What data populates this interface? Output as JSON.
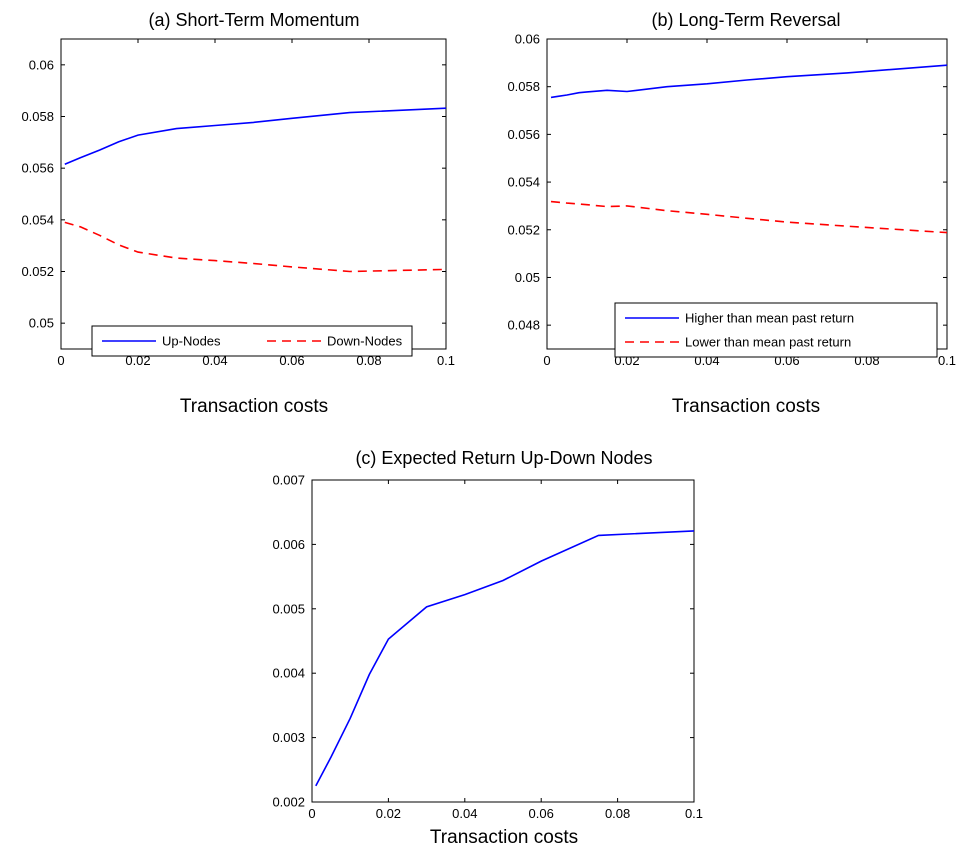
{
  "chart_data": [
    {
      "type": "line",
      "title": "(a) Short-Term Momentum",
      "xlabel": "Transaction costs",
      "ylabel": "",
      "xlim": [
        0,
        0.1
      ],
      "ylim": [
        0.049,
        0.061
      ],
      "xticks": [
        0,
        0.02,
        0.04,
        0.06,
        0.08,
        0.1
      ],
      "xtick_labels": [
        "0",
        "0.02",
        "0.04",
        "0.06",
        "0.08",
        "0.1"
      ],
      "yticks": [
        0.05,
        0.052,
        0.054,
        0.056,
        0.058,
        0.06
      ],
      "ytick_labels": [
        "0.05",
        "0.052",
        "0.054",
        "0.056",
        "0.058",
        "0.06"
      ],
      "legend": "bottom-horizontal",
      "series": [
        {
          "name": "Up-Nodes",
          "color": "#0000ff",
          "dash": "solid",
          "x": [
            0.001,
            0.005,
            0.01,
            0.015,
            0.02,
            0.03,
            0.04,
            0.05,
            0.06,
            0.075,
            0.1
          ],
          "y": [
            0.05615,
            0.0564,
            0.0567,
            0.05702,
            0.05728,
            0.05753,
            0.05765,
            0.05777,
            0.05793,
            0.05815,
            0.05832
          ]
        },
        {
          "name": "Down-Nodes",
          "color": "#ff0000",
          "dash": "dashed",
          "x": [
            0.001,
            0.005,
            0.01,
            0.015,
            0.02,
            0.03,
            0.04,
            0.05,
            0.06,
            0.075,
            0.1
          ],
          "y": [
            0.0539,
            0.05373,
            0.0534,
            0.05303,
            0.05275,
            0.05252,
            0.05242,
            0.05231,
            0.05218,
            0.052,
            0.05208
          ]
        }
      ]
    },
    {
      "type": "line",
      "title": "(b) Long-Term Reversal",
      "xlabel": "Transaction costs",
      "ylabel": "",
      "xlim": [
        0,
        0.1
      ],
      "ylim": [
        0.047,
        0.06
      ],
      "xticks": [
        0,
        0.02,
        0.04,
        0.06,
        0.08,
        0.1
      ],
      "xtick_labels": [
        "0",
        "0.02",
        "0.04",
        "0.06",
        "0.08",
        "0.1"
      ],
      "yticks": [
        0.048,
        0.05,
        0.052,
        0.054,
        0.056,
        0.058,
        0.06
      ],
      "ytick_labels": [
        "0.048",
        "0.05",
        "0.052",
        "0.054",
        "0.056",
        "0.058",
        "0.06"
      ],
      "legend": "bottom-right",
      "series": [
        {
          "name": "Higher than mean past return",
          "color": "#0000ff",
          "dash": "solid",
          "x": [
            0.001,
            0.003,
            0.005,
            0.008,
            0.01,
            0.015,
            0.02,
            0.03,
            0.04,
            0.05,
            0.06,
            0.075,
            0.1
          ],
          "y": [
            0.05755,
            0.0576,
            0.05765,
            0.05775,
            0.05778,
            0.05785,
            0.0578,
            0.058,
            0.05812,
            0.05828,
            0.05842,
            0.05858,
            0.0589
          ]
        },
        {
          "name": "Lower than mean past return",
          "color": "#ff0000",
          "dash": "dashed",
          "x": [
            0.001,
            0.003,
            0.005,
            0.008,
            0.01,
            0.015,
            0.02,
            0.03,
            0.04,
            0.05,
            0.06,
            0.075,
            0.1
          ],
          "y": [
            0.05318,
            0.05315,
            0.05312,
            0.05308,
            0.05305,
            0.05297,
            0.053,
            0.0528,
            0.05265,
            0.05248,
            0.05232,
            0.05215,
            0.05188
          ]
        }
      ]
    },
    {
      "type": "line",
      "title": "(c) Expected Return Up-Down Nodes",
      "xlabel": "Transaction costs",
      "ylabel": "",
      "xlim": [
        0,
        0.1
      ],
      "ylim": [
        0.002,
        0.007
      ],
      "xticks": [
        0,
        0.02,
        0.04,
        0.06,
        0.08,
        0.1
      ],
      "xtick_labels": [
        "0",
        "0.02",
        "0.04",
        "0.06",
        "0.08",
        "0.1"
      ],
      "yticks": [
        0.002,
        0.003,
        0.004,
        0.005,
        0.006,
        0.007
      ],
      "ytick_labels": [
        "0.002",
        "0.003",
        "0.004",
        "0.005",
        "0.006",
        "0.007"
      ],
      "legend": "none",
      "series": [
        {
          "color": "#0000ff",
          "dash": "solid",
          "x": [
            0.001,
            0.005,
            0.01,
            0.015,
            0.02,
            0.03,
            0.04,
            0.05,
            0.06,
            0.075,
            0.1
          ],
          "y": [
            0.00225,
            0.0027,
            0.0033,
            0.00398,
            0.00453,
            0.00503,
            0.00522,
            0.00544,
            0.00574,
            0.00614,
            0.00621
          ]
        }
      ]
    }
  ]
}
